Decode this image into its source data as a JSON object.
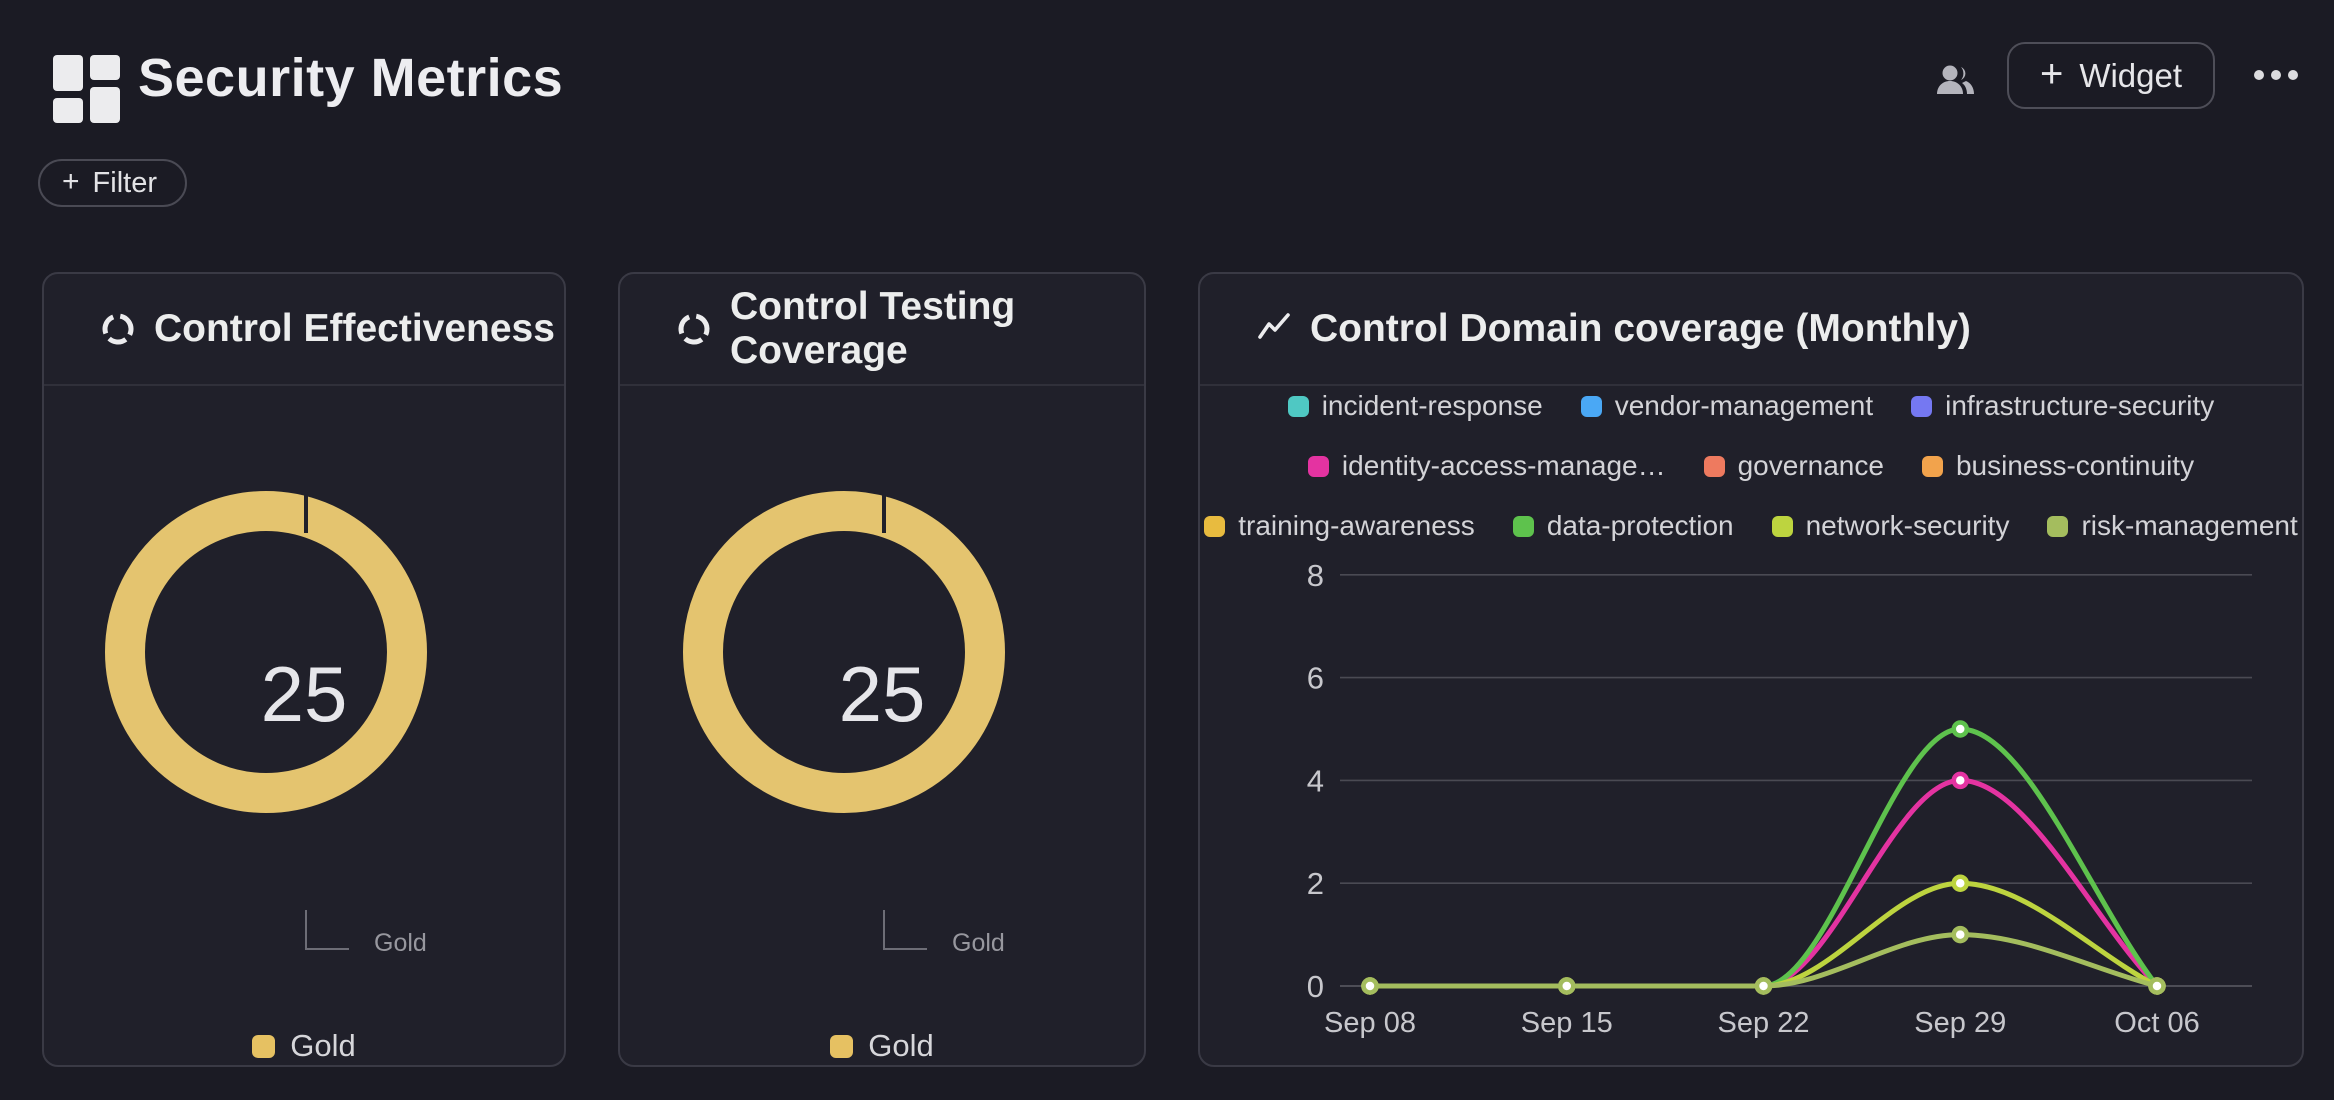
{
  "app": {
    "title": "Security Metrics"
  },
  "header": {
    "widget_button": {
      "label": "Widget",
      "plus_glyph": "+"
    },
    "icons": {
      "logo": "grid-tiles",
      "users": "people",
      "more": "ellipsis"
    }
  },
  "filter": {
    "label": "Filter",
    "plus_glyph": "+"
  },
  "colors": {
    "background": "#1b1b24",
    "card_background": "#20202a",
    "card_border": "#3a3a45",
    "grid_line": "#4a4a53",
    "axis_line": "#5c5c65",
    "axis_text": "#c7c7cc",
    "gold": "#e4c46f"
  },
  "chart_data": [
    {
      "type": "gauge",
      "title": "Control Effectiveness",
      "value": 25,
      "label": "Gold",
      "color": "#e4c46f",
      "legend": [
        {
          "label": "Gold",
          "color": "#e6c162"
        }
      ]
    },
    {
      "type": "gauge",
      "title": "Control Testing Coverage",
      "value": 25,
      "label": "Gold",
      "color": "#e4c46f",
      "legend": [
        {
          "label": "Gold",
          "color": "#e6c162"
        }
      ]
    },
    {
      "type": "line",
      "title": "Control Domain coverage (Monthly)",
      "x": [
        "Sep 08",
        "Sep 15",
        "Sep 22",
        "Sep 29",
        "Oct 06"
      ],
      "yticks": [
        0,
        2,
        4,
        6,
        8
      ],
      "ylim": [
        0,
        8
      ],
      "grid": true,
      "legend_position": "top",
      "smooth": true,
      "series": [
        {
          "name": "incident-response",
          "label": "incident-response",
          "color": "#4fc8c3",
          "values": []
        },
        {
          "name": "vendor-management",
          "label": "vendor-management",
          "color": "#4aa8f5",
          "values": []
        },
        {
          "name": "infrastructure-security",
          "label": "infrastructure-security",
          "color": "#7578f2",
          "values": []
        },
        {
          "name": "identity-access-management",
          "label": "identity-access-manage…",
          "color": "#e433a1",
          "values": [
            0,
            0,
            0,
            4,
            0
          ]
        },
        {
          "name": "governance",
          "label": "governance",
          "color": "#ee7a5f",
          "values": []
        },
        {
          "name": "business-continuity",
          "label": "business-continuity",
          "color": "#f2a34c",
          "values": []
        },
        {
          "name": "training-awareness",
          "label": "training-awareness",
          "color": "#e8bb3f",
          "values": []
        },
        {
          "name": "data-protection",
          "label": "data-protection",
          "color": "#5ec24d",
          "values": [
            0,
            0,
            0,
            5,
            0
          ]
        },
        {
          "name": "network-security",
          "label": "network-security",
          "color": "#bdd43f",
          "values": [
            0,
            0,
            0,
            2,
            0
          ]
        },
        {
          "name": "risk-management",
          "label": "risk-management",
          "color": "#a4bd5e",
          "values": [
            0,
            0,
            0,
            1,
            0
          ]
        }
      ],
      "legend_rows": [
        [
          0,
          1,
          2
        ],
        [
          3,
          4,
          5
        ],
        [
          6,
          7,
          8,
          9
        ]
      ]
    }
  ]
}
